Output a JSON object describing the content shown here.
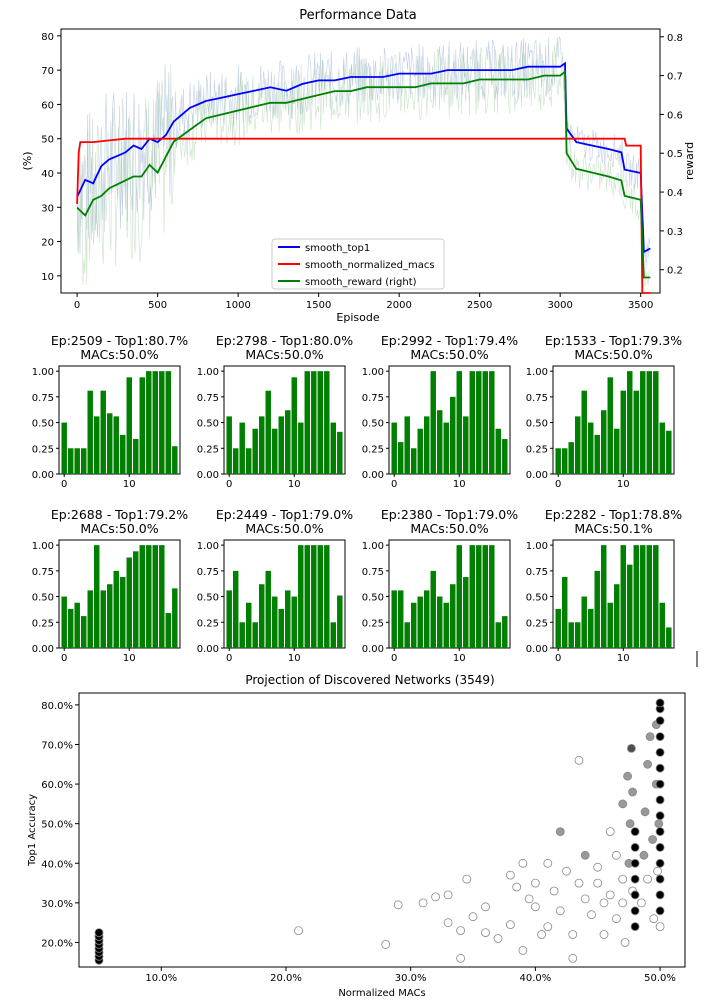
{
  "chart_data": [
    {
      "type": "line",
      "title": "Performance Data",
      "xlabel": "Episode",
      "ylabel": "(%)",
      "ylabel_right": "reward",
      "xlim": [
        -100,
        3620
      ],
      "ylim": [
        5,
        82
      ],
      "ylim_right": [
        0.14,
        0.82
      ],
      "xticks": [
        0,
        500,
        1000,
        1500,
        2000,
        2500,
        3000,
        3500
      ],
      "yticks": [
        10,
        20,
        30,
        40,
        50,
        60,
        70,
        80
      ],
      "yticks_right": [
        0.2,
        0.3,
        0.4,
        0.5,
        0.6,
        0.7,
        0.8
      ],
      "grid": false,
      "legend_position": "lower-center",
      "series": [
        {
          "name": "smooth_top1",
          "axis": "left",
          "color": "#0000ff",
          "x": [
            0,
            50,
            100,
            150,
            200,
            250,
            300,
            350,
            400,
            450,
            500,
            550,
            600,
            700,
            800,
            900,
            1000,
            1100,
            1200,
            1300,
            1400,
            1500,
            1600,
            1700,
            1800,
            1900,
            2000,
            2100,
            2200,
            2300,
            2400,
            2500,
            2600,
            2700,
            2800,
            2900,
            3000,
            3030,
            3040,
            3100,
            3200,
            3300,
            3380,
            3400,
            3500,
            3520,
            3560
          ],
          "y": [
            33,
            38,
            37,
            42,
            44,
            45,
            46,
            48,
            47,
            50,
            49,
            51,
            55,
            59,
            61,
            62,
            63,
            64,
            65,
            64,
            66,
            67,
            67,
            68,
            68,
            68,
            69,
            69,
            69,
            70,
            70,
            70,
            70,
            70,
            71,
            71,
            71,
            72,
            53,
            49,
            48,
            47,
            46,
            41,
            40,
            17,
            18
          ]
        },
        {
          "name": "smooth_normalized_macs",
          "axis": "left",
          "color": "#ff0000",
          "x": [
            0,
            10,
            20,
            100,
            200,
            300,
            500,
            1000,
            1500,
            2000,
            2500,
            3000,
            3400,
            3410,
            3500,
            3510,
            3560
          ],
          "y": [
            31,
            46,
            49,
            49,
            49.5,
            50,
            50,
            50,
            50,
            50,
            50,
            50,
            50,
            48,
            48,
            5,
            5
          ]
        },
        {
          "name": "smooth_reward (right)",
          "axis": "right",
          "color": "#008000",
          "x": [
            0,
            50,
            100,
            150,
            200,
            250,
            300,
            350,
            400,
            450,
            500,
            550,
            600,
            700,
            800,
            900,
            1000,
            1100,
            1200,
            1300,
            1400,
            1500,
            1600,
            1700,
            1800,
            1900,
            2000,
            2100,
            2200,
            2300,
            2400,
            2500,
            2600,
            2700,
            2800,
            2900,
            3000,
            3030,
            3040,
            3100,
            3200,
            3300,
            3380,
            3400,
            3500,
            3520,
            3560
          ],
          "y": [
            0.36,
            0.34,
            0.38,
            0.39,
            0.41,
            0.42,
            0.43,
            0.44,
            0.44,
            0.47,
            0.45,
            0.49,
            0.53,
            0.56,
            0.59,
            0.6,
            0.61,
            0.62,
            0.63,
            0.63,
            0.64,
            0.65,
            0.66,
            0.66,
            0.67,
            0.67,
            0.67,
            0.67,
            0.68,
            0.68,
            0.68,
            0.69,
            0.69,
            0.69,
            0.69,
            0.7,
            0.7,
            0.71,
            0.5,
            0.46,
            0.45,
            0.44,
            0.43,
            0.39,
            0.38,
            0.18,
            0.18
          ]
        }
      ],
      "legend": [
        "smooth_top1",
        "smooth_normalized_macs",
        "smooth_reward (right)"
      ]
    },
    {
      "type": "bar",
      "title": "Ep:2509 - Top1:80.7%\nMACs:50.0%",
      "categories": [
        0,
        1,
        2,
        3,
        4,
        5,
        6,
        7,
        8,
        9,
        10,
        11,
        12,
        13,
        14,
        15,
        16,
        17
      ],
      "values": [
        0.5,
        0.25,
        0.25,
        0.25,
        0.81,
        0.56,
        0.81,
        0.59,
        0.56,
        0.38,
        0.94,
        0.34,
        0.94,
        1.0,
        1.0,
        1.0,
        1.0,
        0.27
      ],
      "ylim": [
        0,
        1.05
      ],
      "xticks": [
        0,
        10
      ],
      "yticks": [
        0.0,
        0.25,
        0.5,
        0.75,
        1.0
      ],
      "color": "#008000"
    },
    {
      "type": "bar",
      "title": "Ep:2798 - Top1:80.0%\nMACs:50.0%",
      "categories": [
        0,
        1,
        2,
        3,
        4,
        5,
        6,
        7,
        8,
        9,
        10,
        11,
        12,
        13,
        14,
        15,
        16,
        17
      ],
      "values": [
        0.56,
        0.25,
        0.5,
        0.25,
        0.44,
        0.56,
        0.81,
        0.44,
        0.56,
        0.62,
        0.94,
        0.5,
        1.0,
        1.0,
        1.0,
        1.0,
        0.5,
        0.41
      ],
      "ylim": [
        0,
        1.05
      ],
      "xticks": [
        0,
        10
      ],
      "yticks": [
        0.0,
        0.25,
        0.5,
        0.75,
        1.0
      ],
      "color": "#008000"
    },
    {
      "type": "bar",
      "title": "Ep:2992 - Top1:79.4%\nMACs:50.0%",
      "categories": [
        0,
        1,
        2,
        3,
        4,
        5,
        6,
        7,
        8,
        9,
        10,
        11,
        12,
        13,
        14,
        15,
        16,
        17
      ],
      "values": [
        0.5,
        0.31,
        0.56,
        0.25,
        0.44,
        0.56,
        1.0,
        0.62,
        0.5,
        0.75,
        1.0,
        0.56,
        1.0,
        1.0,
        1.0,
        1.0,
        0.44,
        0.34
      ],
      "ylim": [
        0,
        1.05
      ],
      "xticks": [
        0,
        10
      ],
      "yticks": [
        0.0,
        0.25,
        0.5,
        0.75,
        1.0
      ],
      "color": "#008000"
    },
    {
      "type": "bar",
      "title": "Ep:1533 - Top1:79.3%\nMACs:50.0%",
      "categories": [
        0,
        1,
        2,
        3,
        4,
        5,
        6,
        7,
        8,
        9,
        10,
        11,
        12,
        13,
        14,
        15,
        16,
        17
      ],
      "values": [
        0.25,
        0.25,
        0.31,
        0.56,
        0.81,
        0.5,
        0.38,
        0.62,
        0.94,
        0.44,
        0.81,
        1.0,
        0.81,
        1.0,
        1.0,
        1.0,
        0.5,
        0.42
      ],
      "ylim": [
        0,
        1.05
      ],
      "xticks": [
        0,
        10
      ],
      "yticks": [
        0.0,
        0.25,
        0.5,
        0.75,
        1.0
      ],
      "color": "#008000"
    },
    {
      "type": "bar",
      "title": "Ep:2688 - Top1:79.2%\nMACs:50.0%",
      "categories": [
        0,
        1,
        2,
        3,
        4,
        5,
        6,
        7,
        8,
        9,
        10,
        11,
        12,
        13,
        14,
        15,
        16,
        17
      ],
      "values": [
        0.5,
        0.38,
        0.44,
        0.31,
        0.56,
        1.0,
        0.56,
        0.62,
        0.75,
        0.69,
        0.88,
        0.94,
        1.0,
        1.0,
        1.0,
        1.0,
        0.34,
        0.58
      ],
      "ylim": [
        0,
        1.05
      ],
      "xticks": [
        0,
        10
      ],
      "yticks": [
        0.0,
        0.25,
        0.5,
        0.75,
        1.0
      ],
      "color": "#008000"
    },
    {
      "type": "bar",
      "title": "Ep:2449 - Top1:79.0%\nMACs:50.0%",
      "categories": [
        0,
        1,
        2,
        3,
        4,
        5,
        6,
        7,
        8,
        9,
        10,
        11,
        12,
        13,
        14,
        15,
        16,
        17
      ],
      "values": [
        0.56,
        0.75,
        0.25,
        0.44,
        0.25,
        0.62,
        0.75,
        0.5,
        0.38,
        0.56,
        0.5,
        1.0,
        1.0,
        1.0,
        1.0,
        1.0,
        0.25,
        0.51
      ],
      "ylim": [
        0,
        1.05
      ],
      "xticks": [
        0,
        10
      ],
      "yticks": [
        0.0,
        0.25,
        0.5,
        0.75,
        1.0
      ],
      "color": "#008000"
    },
    {
      "type": "bar",
      "title": "Ep:2380 - Top1:79.0%\nMACs:50.0%",
      "categories": [
        0,
        1,
        2,
        3,
        4,
        5,
        6,
        7,
        8,
        9,
        10,
        11,
        12,
        13,
        14,
        15,
        16,
        17
      ],
      "values": [
        0.56,
        0.56,
        0.25,
        0.44,
        0.5,
        0.56,
        0.75,
        0.5,
        0.44,
        0.62,
        1.0,
        0.69,
        1.0,
        1.0,
        1.0,
        1.0,
        0.25,
        0.31
      ],
      "ylim": [
        0,
        1.05
      ],
      "xticks": [
        0,
        10
      ],
      "yticks": [
        0.0,
        0.25,
        0.5,
        0.75,
        1.0
      ],
      "color": "#008000"
    },
    {
      "type": "bar",
      "title": "Ep:2282 - Top1:78.8%\nMACs:50.1%",
      "categories": [
        0,
        1,
        2,
        3,
        4,
        5,
        6,
        7,
        8,
        9,
        10,
        11,
        12,
        13,
        14,
        15,
        16,
        17
      ],
      "values": [
        0.38,
        0.69,
        0.25,
        0.25,
        0.5,
        0.38,
        0.75,
        1.0,
        0.44,
        0.62,
        1.0,
        0.81,
        1.0,
        1.0,
        1.0,
        1.0,
        0.44,
        0.2
      ],
      "ylim": [
        0,
        1.05
      ],
      "xticks": [
        0,
        10
      ],
      "yticks": [
        0.0,
        0.25,
        0.5,
        0.75,
        1.0
      ],
      "color": "#008000"
    },
    {
      "type": "scatter",
      "title": "Projection of Discovered Networks (3549)",
      "xlabel": "Normalized MACs",
      "ylabel": "Top1 Accuracy",
      "xlim": [
        0.034,
        0.52
      ],
      "ylim": [
        0.138,
        0.83
      ],
      "xticks": [
        "10.0%",
        "20.0%",
        "30.0%",
        "40.0%",
        "50.0%"
      ],
      "xtick_values": [
        0.1,
        0.2,
        0.3,
        0.4,
        0.5
      ],
      "yticks": [
        "20.0%",
        "30.0%",
        "40.0%",
        "50.0%",
        "60.0%",
        "70.0%",
        "80.0%"
      ],
      "ytick_values": [
        0.2,
        0.3,
        0.4,
        0.5,
        0.6,
        0.7,
        0.8
      ],
      "grid": false,
      "points": [
        [
          0.05,
          0.155,
          0
        ],
        [
          0.05,
          0.165,
          0
        ],
        [
          0.05,
          0.175,
          0
        ],
        [
          0.05,
          0.185,
          0
        ],
        [
          0.05,
          0.195,
          0
        ],
        [
          0.05,
          0.205,
          0
        ],
        [
          0.05,
          0.215,
          0
        ],
        [
          0.05,
          0.225,
          0
        ],
        [
          0.21,
          0.23,
          1
        ],
        [
          0.28,
          0.195,
          1
        ],
        [
          0.29,
          0.295,
          1
        ],
        [
          0.31,
          0.3,
          1
        ],
        [
          0.32,
          0.315,
          1
        ],
        [
          0.33,
          0.32,
          1
        ],
        [
          0.33,
          0.25,
          1
        ],
        [
          0.34,
          0.23,
          1
        ],
        [
          0.34,
          0.16,
          1
        ],
        [
          0.345,
          0.36,
          1
        ],
        [
          0.35,
          0.265,
          1
        ],
        [
          0.36,
          0.225,
          1
        ],
        [
          0.36,
          0.29,
          1
        ],
        [
          0.37,
          0.21,
          1
        ],
        [
          0.38,
          0.245,
          1
        ],
        [
          0.38,
          0.37,
          1
        ],
        [
          0.385,
          0.34,
          1
        ],
        [
          0.39,
          0.18,
          1
        ],
        [
          0.39,
          0.4,
          1
        ],
        [
          0.395,
          0.31,
          1
        ],
        [
          0.4,
          0.29,
          1
        ],
        [
          0.4,
          0.35,
          1
        ],
        [
          0.405,
          0.22,
          1
        ],
        [
          0.41,
          0.24,
          1
        ],
        [
          0.41,
          0.4,
          1
        ],
        [
          0.415,
          0.33,
          1
        ],
        [
          0.42,
          0.48,
          0.6
        ],
        [
          0.42,
          0.28,
          1
        ],
        [
          0.425,
          0.38,
          1
        ],
        [
          0.43,
          0.22,
          1
        ],
        [
          0.43,
          0.16,
          1
        ],
        [
          0.435,
          0.66,
          1
        ],
        [
          0.435,
          0.35,
          1
        ],
        [
          0.44,
          0.31,
          1
        ],
        [
          0.44,
          0.42,
          0.6
        ],
        [
          0.445,
          0.27,
          1
        ],
        [
          0.45,
          0.35,
          1
        ],
        [
          0.45,
          0.39,
          1
        ],
        [
          0.455,
          0.3,
          1
        ],
        [
          0.455,
          0.22,
          1
        ],
        [
          0.46,
          0.48,
          1
        ],
        [
          0.46,
          0.32,
          1
        ],
        [
          0.465,
          0.26,
          1
        ],
        [
          0.465,
          0.42,
          1
        ],
        [
          0.47,
          0.36,
          1
        ],
        [
          0.47,
          0.3,
          1
        ],
        [
          0.47,
          0.55,
          0.6
        ],
        [
          0.472,
          0.2,
          1
        ],
        [
          0.474,
          0.62,
          0.6
        ],
        [
          0.475,
          0.4,
          0.6
        ],
        [
          0.476,
          0.5,
          0.6
        ],
        [
          0.477,
          0.69,
          0.3
        ],
        [
          0.478,
          0.33,
          1
        ],
        [
          0.478,
          0.58,
          0.6
        ],
        [
          0.48,
          0.24,
          0
        ],
        [
          0.48,
          0.28,
          0
        ],
        [
          0.48,
          0.32,
          0
        ],
        [
          0.48,
          0.36,
          0
        ],
        [
          0.48,
          0.4,
          0
        ],
        [
          0.48,
          0.44,
          0
        ],
        [
          0.48,
          0.48,
          0
        ],
        [
          0.485,
          0.3,
          1
        ],
        [
          0.487,
          0.42,
          0.6
        ],
        [
          0.488,
          0.53,
          0.6
        ],
        [
          0.49,
          0.65,
          0.6
        ],
        [
          0.49,
          0.36,
          1
        ],
        [
          0.492,
          0.72,
          0.6
        ],
        [
          0.494,
          0.46,
          0.6
        ],
        [
          0.495,
          0.26,
          1
        ],
        [
          0.497,
          0.6,
          0.6
        ],
        [
          0.497,
          0.75,
          0.6
        ],
        [
          0.498,
          0.38,
          1
        ],
        [
          0.499,
          0.5,
          0.6
        ],
        [
          0.5,
          0.24,
          1
        ],
        [
          0.5,
          0.28,
          0
        ],
        [
          0.5,
          0.32,
          0
        ],
        [
          0.5,
          0.36,
          0
        ],
        [
          0.5,
          0.4,
          0
        ],
        [
          0.5,
          0.44,
          0
        ],
        [
          0.5,
          0.48,
          0
        ],
        [
          0.5,
          0.52,
          0
        ],
        [
          0.5,
          0.56,
          0
        ],
        [
          0.5,
          0.6,
          0
        ],
        [
          0.5,
          0.64,
          0
        ],
        [
          0.5,
          0.68,
          0
        ],
        [
          0.5,
          0.72,
          0
        ],
        [
          0.5,
          0.76,
          0
        ],
        [
          0.5,
          0.79,
          0
        ],
        [
          0.5,
          0.805,
          0
        ]
      ]
    }
  ]
}
